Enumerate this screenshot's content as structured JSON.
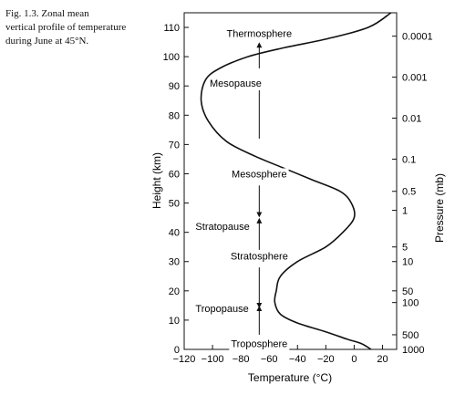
{
  "caption": {
    "lines": [
      "Fig. 1.3.  Zonal mean",
      "vertical profile of temperature",
      "during June at 45°N."
    ]
  },
  "chart_data": {
    "type": "line",
    "title": "",
    "xlabel": "Temperature (°C)",
    "ylabel": "Height (km)",
    "y2label": "Pressure (mb)",
    "xlim": [
      -120,
      30
    ],
    "ylim": [
      0,
      115
    ],
    "grid": false,
    "x_ticks": [
      -120,
      -100,
      -80,
      -60,
      -40,
      -20,
      0,
      20
    ],
    "y_ticks": [
      0,
      10,
      20,
      30,
      40,
      50,
      60,
      70,
      80,
      90,
      100,
      110
    ],
    "pressure_ticks": [
      {
        "label": "0.0001",
        "height_km": 107
      },
      {
        "label": "0.001",
        "height_km": 93
      },
      {
        "label": "0.01",
        "height_km": 79
      },
      {
        "label": "0.1",
        "height_km": 65
      },
      {
        "label": "0.5",
        "height_km": 54
      },
      {
        "label": "1",
        "height_km": 47.5
      },
      {
        "label": "5",
        "height_km": 35
      },
      {
        "label": "10",
        "height_km": 30
      },
      {
        "label": "50",
        "height_km": 20
      },
      {
        "label": "100",
        "height_km": 16
      },
      {
        "label": "500",
        "height_km": 5
      },
      {
        "label": "1000",
        "height_km": 0
      }
    ],
    "series": [
      {
        "x": [
          12,
          5,
          -5,
          -20,
          -40,
          -52,
          -56,
          -55,
          -52,
          -40,
          -20,
          -8,
          0,
          -2,
          -10,
          -30,
          -50,
          -70,
          -90,
          -103,
          -108,
          -105,
          -95,
          -75,
          -50,
          -20,
          10,
          26
        ],
        "y": [
          0,
          2,
          3.5,
          6,
          9,
          12,
          16,
          20,
          25,
          30,
          35,
          40,
          45,
          50,
          54,
          58,
          62,
          66,
          71,
          78,
          85,
          92,
          96,
          100,
          103,
          106,
          110,
          115
        ]
      }
    ],
    "annotations": [
      {
        "text": "Thermosphere",
        "x": -67,
        "y": 108
      },
      {
        "text": "Mesopause",
        "x": -102,
        "y": 91
      },
      {
        "text": "Mesosphere",
        "x": -67,
        "y": 60
      },
      {
        "text": "Stratopause",
        "x": -112,
        "y": 42
      },
      {
        "text": "Stratosphere",
        "x": -67,
        "y": 32
      },
      {
        "text": "Tropopause",
        "x": -112,
        "y": 14
      },
      {
        "text": "Troposphere",
        "x": -67,
        "y": 2
      }
    ],
    "arrows": [
      {
        "x": -67,
        "from_y": 96,
        "to_y": 104
      },
      {
        "x": -67,
        "from_y": 72,
        "to_y": 90
      },
      {
        "x": -67,
        "from_y": 56,
        "to_y": 46
      },
      {
        "x": -67,
        "from_y": 34,
        "to_y": 44
      },
      {
        "x": -67,
        "from_y": 28,
        "to_y": 15
      },
      {
        "x": -67,
        "from_y": 5,
        "to_y": 14
      }
    ]
  }
}
